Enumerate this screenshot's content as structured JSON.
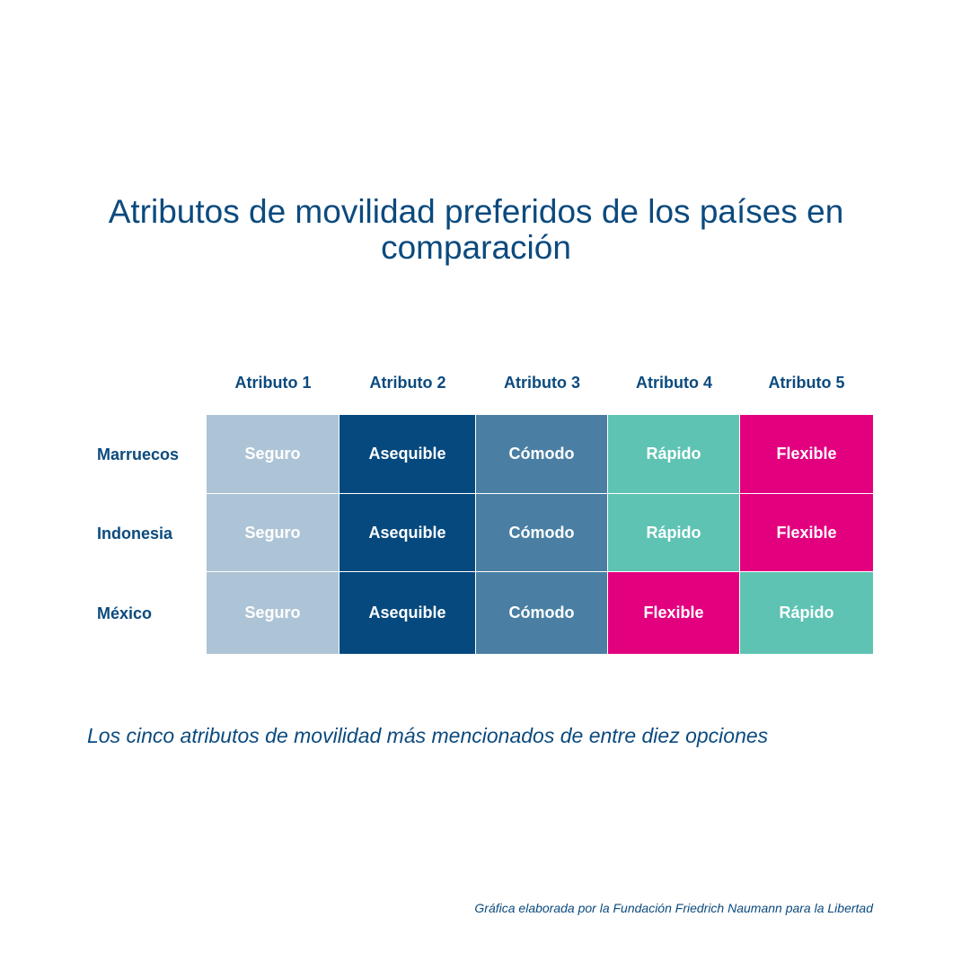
{
  "title": "Atributos de movilidad preferidos de los países en comparación",
  "subtitle": "Los cinco atributos de movilidad más mencionados de entre diez opciones",
  "credit": "Gráfica elaborada por la Fundación Friedrich Naumann para la Libertad",
  "colors": {
    "Seguro": "#adc4d6",
    "Asequible": "#05497e",
    "Cómodo": "#4a7fa3",
    "Rápido": "#5ec3b3",
    "Flexible": "#e3007f",
    "text": "#0b4a7e"
  },
  "chart_data": {
    "type": "table",
    "columns": [
      "Atributo 1",
      "Atributo 2",
      "Atributo 3",
      "Atributo 4",
      "Atributo 5"
    ],
    "rows": [
      {
        "country": "Marruecos",
        "values": [
          "Seguro",
          "Asequible",
          "Cómodo",
          "Rápido",
          "Flexible"
        ]
      },
      {
        "country": "Indonesia",
        "values": [
          "Seguro",
          "Asequible",
          "Cómodo",
          "Rápido",
          "Flexible"
        ]
      },
      {
        "country": "México",
        "values": [
          "Seguro",
          "Asequible",
          "Cómodo",
          "Flexible",
          "Rápido"
        ]
      }
    ]
  }
}
